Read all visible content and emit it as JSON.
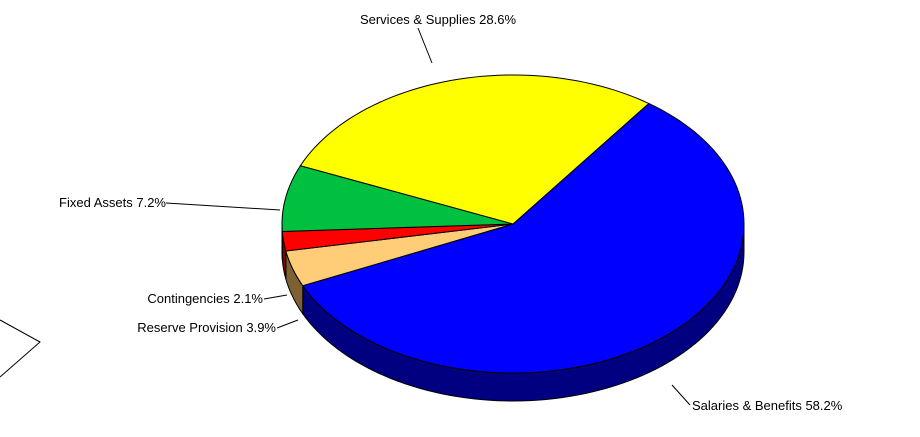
{
  "chart_data": {
    "type": "pie",
    "title": "",
    "series": [
      {
        "name": "",
        "slices": [
          {
            "label": "Salaries & Benefits",
            "percent_label": "58.2%",
            "value": 58.2,
            "color": "#0000FF",
            "side_color": "#000080"
          },
          {
            "label": "Reserve Provision",
            "percent_label": "3.9%",
            "value": 3.9,
            "color": "#FFCC77",
            "side_color": "#7F6033"
          },
          {
            "label": "Contingencies",
            "percent_label": "2.1%",
            "value": 2.1,
            "color": "#FF0000",
            "side_color": "#800000"
          },
          {
            "label": "Fixed Assets",
            "percent_label": "7.2%",
            "value": 7.2,
            "color": "#00C040",
            "side_color": "#006020"
          },
          {
            "label": "Services & Supplies",
            "percent_label": "28.6%",
            "value": 28.6,
            "color": "#FFFF00",
            "side_color": "#808000"
          }
        ]
      }
    ],
    "legend": "none",
    "style": "3d-pie-with-leader-lines"
  }
}
